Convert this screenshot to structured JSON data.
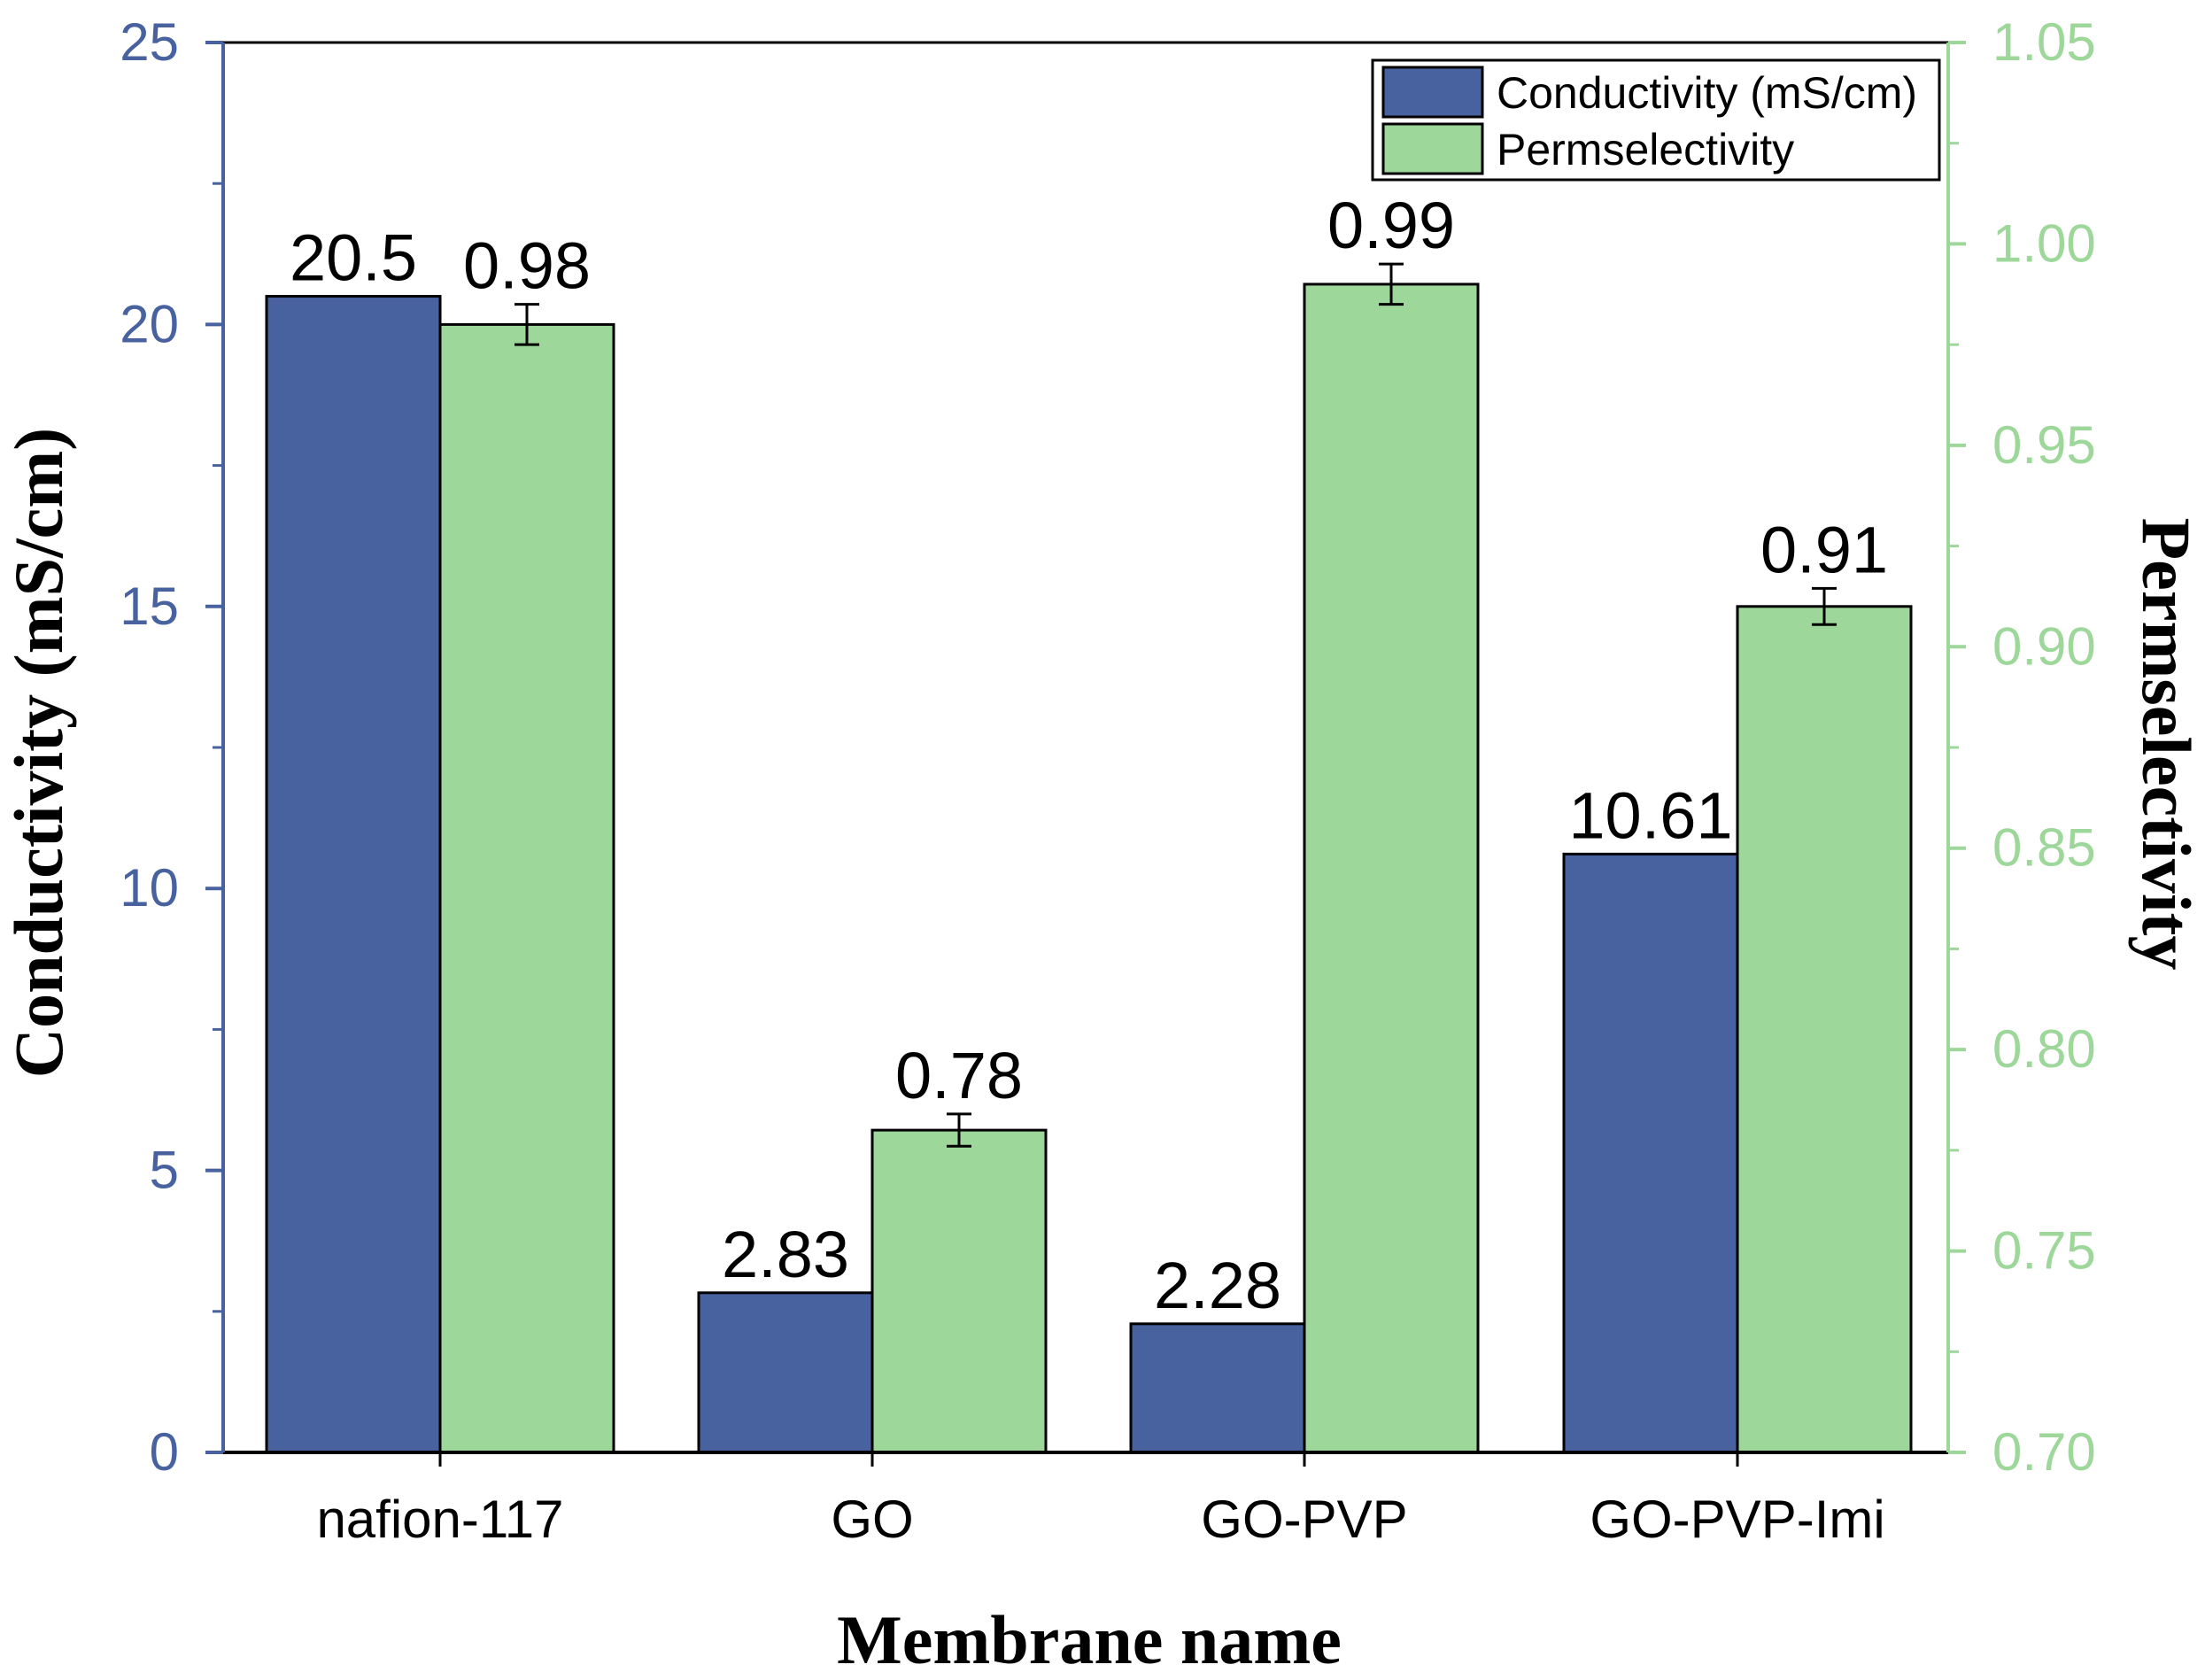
{
  "colors": {
    "conductivity": "#4862a0",
    "permselectivity": "#9dd79a",
    "left_axis": "#4862a0",
    "right_axis": "#9dd79a"
  },
  "chart_data": {
    "type": "bar",
    "categories": [
      "nafion-117",
      "GO",
      "GO-PVP",
      "GO-PVP-Imi"
    ],
    "series": [
      {
        "name": "Conductivity (mS/cm)",
        "axis": "left",
        "values": [
          20.5,
          2.83,
          2.28,
          10.61
        ],
        "labels": [
          "20.5",
          "2.83",
          "2.28",
          "10.61"
        ]
      },
      {
        "name": "Permselectivity",
        "axis": "right",
        "values": [
          0.98,
          0.78,
          0.99,
          0.91
        ],
        "labels": [
          "0.98",
          "0.78",
          "0.99",
          "0.91"
        ],
        "errors": [
          0.005,
          0.004,
          0.005,
          0.0045
        ]
      }
    ],
    "xlabel": "Membrane name",
    "ylabel_left": "Conductivity (mS/cm)",
    "ylabel_right": "Permselectivity",
    "ylim_left": [
      0,
      25
    ],
    "ylim_right": [
      0.7,
      1.05
    ],
    "yticks_left": [
      "0",
      "5",
      "10",
      "15",
      "20",
      "25"
    ],
    "yticks_right": [
      "0.70",
      "0.75",
      "0.80",
      "0.85",
      "0.90",
      "0.95",
      "1.00",
      "1.05"
    ],
    "grid": false,
    "legend_position": "top-right"
  }
}
